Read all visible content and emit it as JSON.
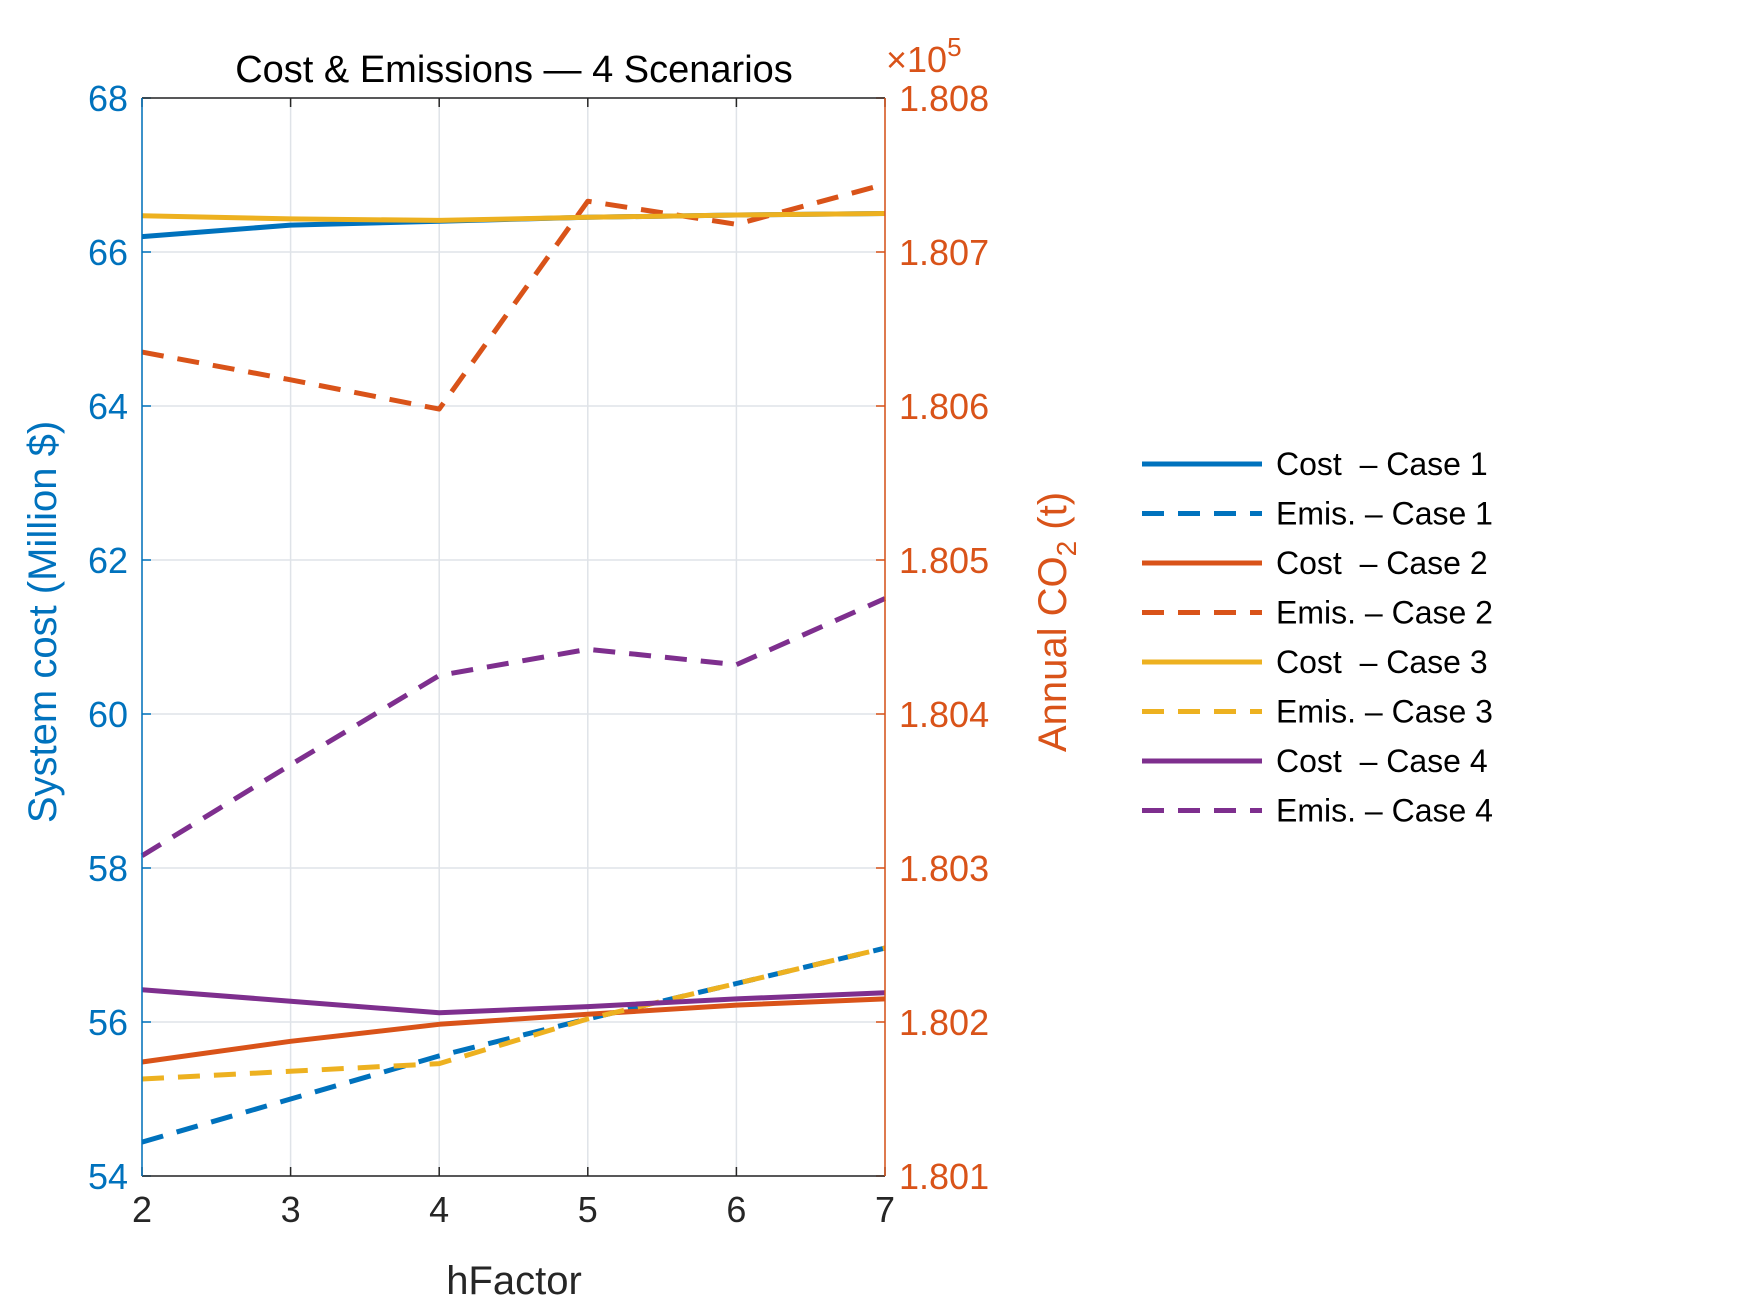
{
  "chart_data": {
    "type": "line",
    "title": "Cost & Emissions — 4 Scenarios",
    "xlabel": "hFactor",
    "ylabel_left": "System cost (Million $)",
    "ylabel_right_main": "Annual CO",
    "ylabel_right_sub": "2",
    "ylabel_right_end": " (t)",
    "right_exponent_base": "×10",
    "right_exponent_power": "5",
    "x": [
      2,
      3,
      4,
      5,
      6,
      7
    ],
    "xlim": [
      2,
      7
    ],
    "ylim_left": [
      54,
      68
    ],
    "ylim_right": [
      1.801,
      1.808
    ],
    "xticks": [
      "2",
      "3",
      "4",
      "5",
      "6",
      "7"
    ],
    "yticks_left": [
      "54",
      "56",
      "58",
      "60",
      "62",
      "64",
      "66",
      "68"
    ],
    "yticks_right": [
      "1.801",
      "1.802",
      "1.803",
      "1.804",
      "1.805",
      "1.806",
      "1.807",
      "1.808"
    ],
    "grid": true,
    "legend_position": "outside-right",
    "series": [
      {
        "name": "Cost  – Case 1",
        "axis": "left",
        "style": "solid",
        "color": "#0072BD",
        "values": [
          66.2,
          66.35,
          66.4,
          66.45,
          66.48,
          66.5
        ]
      },
      {
        "name": "Emis. – Case 1",
        "axis": "right",
        "style": "dashed",
        "color": "#0072BD",
        "values": [
          1.80122,
          1.8015,
          1.80178,
          1.80202,
          1.80225,
          1.80248
        ]
      },
      {
        "name": "Cost  – Case 2",
        "axis": "left",
        "style": "solid",
        "color": "#D95319",
        "values": [
          55.48,
          55.75,
          55.97,
          56.1,
          56.22,
          56.3
        ]
      },
      {
        "name": "Emis. – Case 2",
        "axis": "right",
        "style": "dashed",
        "color": "#D95319",
        "values": [
          1.80635,
          1.80617,
          1.80598,
          1.80733,
          1.80718,
          1.80744
        ]
      },
      {
        "name": "Cost  – Case 3",
        "axis": "left",
        "style": "solid",
        "color": "#EDB120",
        "values": [
          66.47,
          66.43,
          66.41,
          66.45,
          66.48,
          66.5
        ]
      },
      {
        "name": "Emis. – Case 3",
        "axis": "right",
        "style": "dashed",
        "color": "#EDB120",
        "values": [
          1.80163,
          1.80168,
          1.80173,
          1.80202,
          1.80225,
          1.80248
        ]
      },
      {
        "name": "Cost  – Case 4",
        "axis": "left",
        "style": "solid",
        "color": "#7E2F8E",
        "values": [
          56.42,
          56.27,
          56.12,
          56.2,
          56.3,
          56.38
        ]
      },
      {
        "name": "Emis. – Case 4",
        "axis": "right",
        "style": "dashed",
        "color": "#7E2F8E",
        "values": [
          1.80308,
          1.80367,
          1.80425,
          1.80442,
          1.80432,
          1.80475
        ]
      }
    ]
  }
}
